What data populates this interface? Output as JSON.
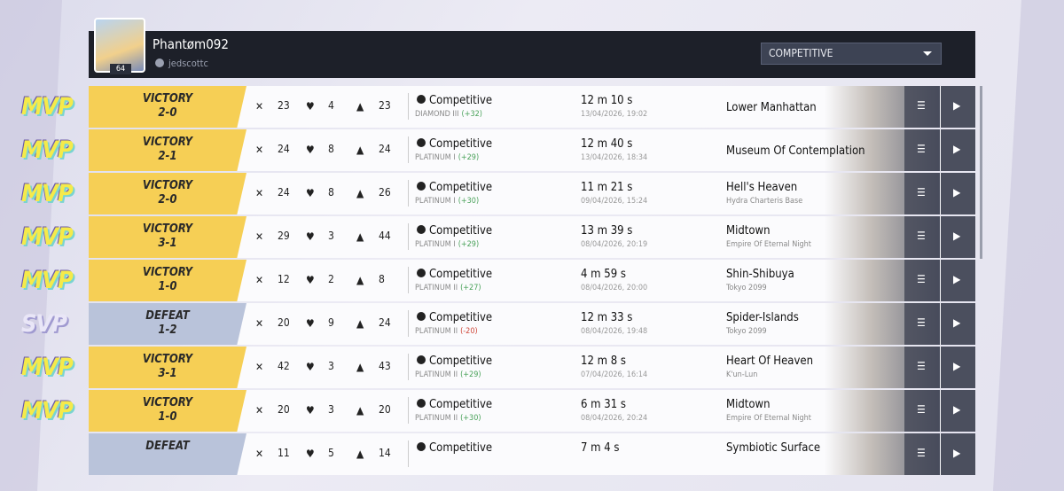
{
  "header": {
    "username": "Phantøm092",
    "handle": "jedscottc",
    "level": "64",
    "filter": "COMPETITIVE"
  },
  "matches": [
    {
      "badge": "MVP",
      "result": "VICTORY",
      "score": "2-0",
      "kills": "23",
      "deaths": "4",
      "assists": "23",
      "mode": "Competitive",
      "rank": "DIAMOND III",
      "rank_change": "(+32)",
      "duration": "12 m 10 s",
      "date": "13/04/2026, 19:02",
      "map": "Lower Manhattan",
      "submap": null
    },
    {
      "badge": "MVP",
      "result": "VICTORY",
      "score": "2-1",
      "kills": "24",
      "deaths": "8",
      "assists": "24",
      "mode": "Competitive",
      "rank": "PLATINUM I",
      "rank_change": "(+29)",
      "duration": "12 m 40 s",
      "date": "13/04/2026, 18:34",
      "map": "Museum Of Contemplation",
      "submap": null
    },
    {
      "badge": "MVP",
      "result": "VICTORY",
      "score": "2-0",
      "kills": "24",
      "deaths": "8",
      "assists": "26",
      "mode": "Competitive",
      "rank": "PLATINUM I",
      "rank_change": "(+30)",
      "duration": "11 m 21 s",
      "date": "09/04/2026, 15:24",
      "map": "Hell's Heaven",
      "submap": "Hydra Charteris Base"
    },
    {
      "badge": "MVP",
      "result": "VICTORY",
      "score": "3-1",
      "kills": "29",
      "deaths": "3",
      "assists": "44",
      "mode": "Competitive",
      "rank": "PLATINUM I",
      "rank_change": "(+29)",
      "duration": "13 m 39 s",
      "date": "08/04/2026, 20:19",
      "map": "Midtown",
      "submap": "Empire Of Eternal Night"
    },
    {
      "badge": "MVP",
      "result": "VICTORY",
      "score": "1-0",
      "kills": "12",
      "deaths": "2",
      "assists": "8",
      "mode": "Competitive",
      "rank": "PLATINUM II",
      "rank_change": "(+27)",
      "duration": "4 m 59 s",
      "date": "08/04/2026, 20:00",
      "map": "Shin-Shibuya",
      "submap": "Tokyo 2099"
    },
    {
      "badge": "SVP",
      "result": "DEFEAT",
      "score": "1-2",
      "kills": "20",
      "deaths": "9",
      "assists": "24",
      "mode": "Competitive",
      "rank": "PLATINUM II",
      "rank_change": "(-20)",
      "duration": "12 m 33 s",
      "date": "08/04/2026, 19:48",
      "map": "Spider-Islands",
      "submap": "Tokyo 2099"
    },
    {
      "badge": "MVP",
      "result": "VICTORY",
      "score": "3-1",
      "kills": "42",
      "deaths": "3",
      "assists": "43",
      "mode": "Competitive",
      "rank": "PLATINUM II",
      "rank_change": "(+29)",
      "duration": "12 m 8 s",
      "date": "07/04/2026, 16:14",
      "map": "Heart Of Heaven",
      "submap": "K'un-Lun"
    },
    {
      "badge": "MVP",
      "result": "VICTORY",
      "score": "1-0",
      "kills": "20",
      "deaths": "3",
      "assists": "20",
      "mode": "Competitive",
      "rank": "PLATINUM II",
      "rank_change": "(+30)",
      "duration": "6 m 31 s",
      "date": "08/04/2026, 20:24",
      "map": "Midtown",
      "submap": "Empire Of Eternal Night"
    },
    {
      "badge": null,
      "result": "DEFEAT",
      "score": null,
      "kills": "11",
      "deaths": "5",
      "assists": "14",
      "mode": "Competitive",
      "rank": null,
      "rank_change": null,
      "duration": "7 m 4 s",
      "date": null,
      "map": "Symbiotic Surface",
      "submap": null
    }
  ]
}
